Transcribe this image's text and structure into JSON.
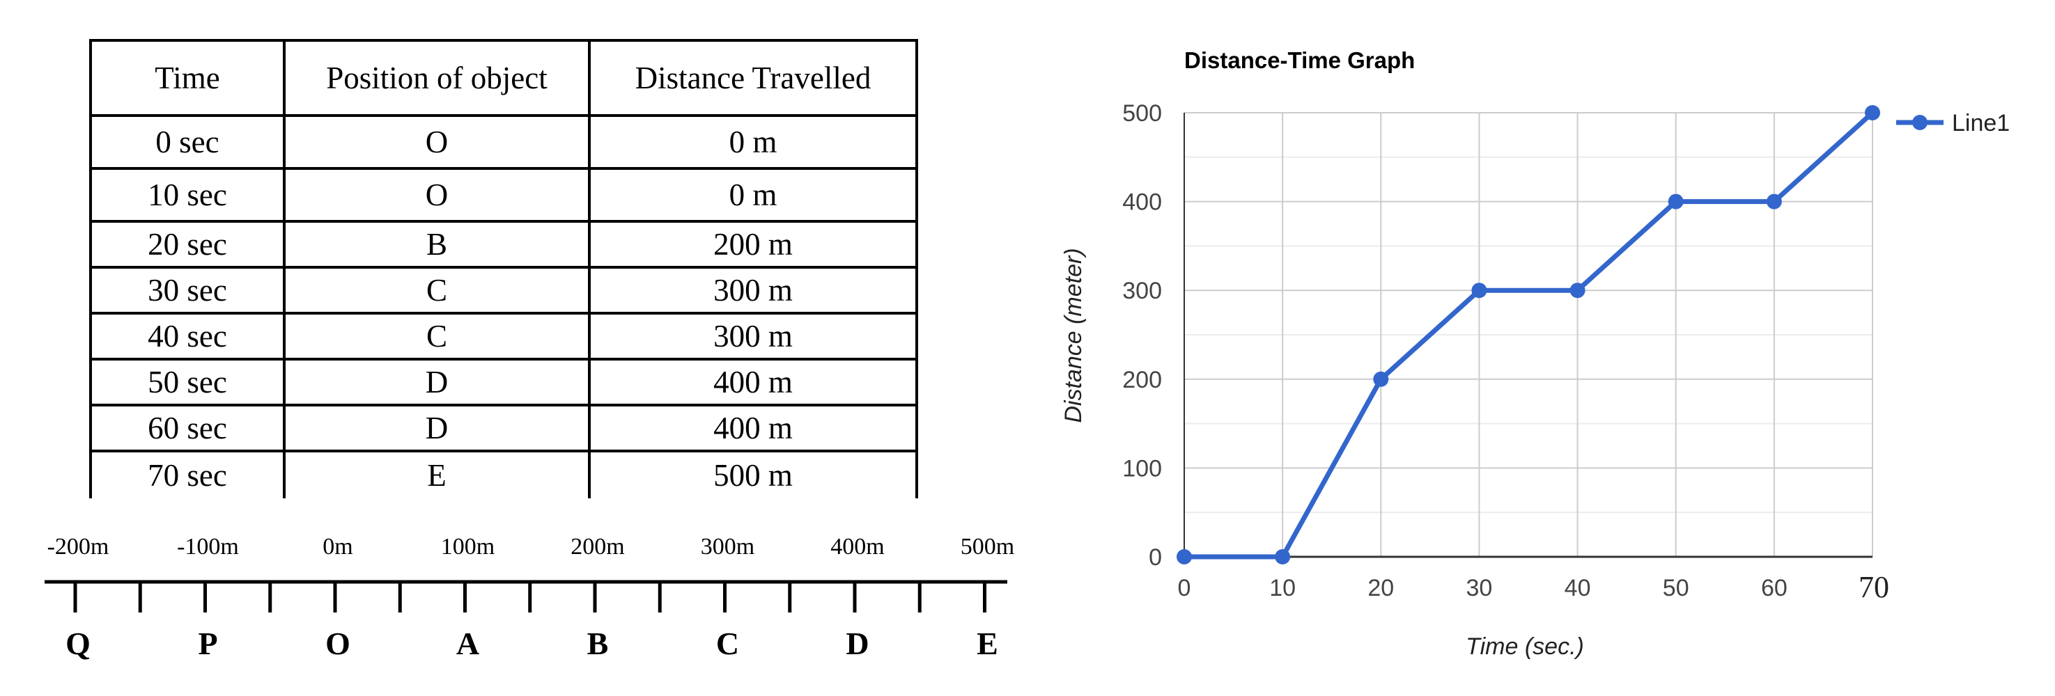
{
  "table": {
    "headers": [
      "Time",
      "Position of object",
      "Distance Travelled"
    ],
    "rows": [
      [
        "0 sec",
        "O",
        "0 m"
      ],
      [
        "10 sec",
        "O",
        "0 m"
      ],
      [
        "20 sec",
        "B",
        "200 m"
      ],
      [
        "30 sec",
        "C",
        "300 m"
      ],
      [
        "40 sec",
        "C",
        "300 m"
      ],
      [
        "50 sec",
        "D",
        "400 m"
      ],
      [
        "60 sec",
        "D",
        "400 m"
      ],
      [
        "70 sec",
        "E",
        "500 m"
      ]
    ]
  },
  "number_line": {
    "labels": [
      "-200m",
      "-100m",
      "0m",
      "100m",
      "200m",
      "300m",
      "400m",
      "500m"
    ],
    "points": [
      "Q",
      "P",
      "O",
      "A",
      "B",
      "C",
      "D",
      "E"
    ]
  },
  "chart_data": {
    "type": "line",
    "title": "Distance-Time Graph",
    "xlabel": "Time (sec.)",
    "ylabel": "Distance (meter)",
    "x": [
      0,
      10,
      20,
      30,
      40,
      50,
      60,
      70
    ],
    "x_tick_labels": [
      "0",
      "10",
      "20",
      "30",
      "40",
      "50",
      "60",
      "70"
    ],
    "y_ticks": [
      0,
      100,
      200,
      300,
      400,
      500
    ],
    "xlim": [
      0,
      70
    ],
    "ylim": [
      0,
      500
    ],
    "grid": true,
    "legend_position": "right",
    "series": [
      {
        "name": "Line1",
        "values": [
          0,
          0,
          200,
          300,
          300,
          400,
          400,
          500
        ],
        "color": "#3366cc"
      }
    ]
  }
}
